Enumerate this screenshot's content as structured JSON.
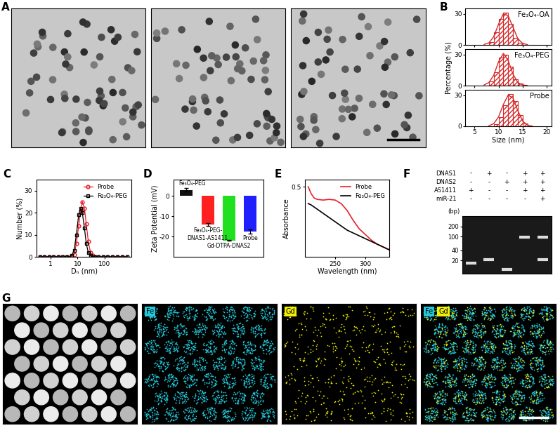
{
  "panel_A": {
    "label": "A",
    "images": 3
  },
  "chart_data": [
    {
      "type": "histogram",
      "label": "B",
      "annotation": "Fe₃O₄-OA",
      "bins": [
        8,
        9,
        10,
        11,
        12,
        13,
        14,
        15
      ],
      "values": [
        3,
        12,
        25,
        31,
        20,
        7,
        2
      ],
      "fit": {
        "x": [
          7,
          8,
          9,
          10,
          11,
          12,
          13,
          14,
          15,
          16
        ],
        "values": [
          0.5,
          2,
          8,
          20,
          30,
          28,
          17,
          6,
          1.5,
          0.3
        ]
      },
      "color": "#d62728",
      "xlim": [
        3,
        21
      ],
      "xticks": [
        5,
        10,
        15,
        20
      ],
      "ylim": [
        0,
        35
      ],
      "yticks": [
        0,
        30
      ],
      "tick_labels": "y"
    },
    {
      "type": "histogram",
      "annotation": "Fe₃O₄-PEG",
      "ylabel": "Percentage (%)",
      "bins": [
        8,
        9,
        10,
        11,
        12,
        13,
        14,
        15
      ],
      "values": [
        4,
        13,
        27,
        30,
        18,
        6,
        2
      ],
      "fit": {
        "x": [
          7,
          8,
          9,
          10,
          11,
          12,
          13,
          14,
          15,
          16
        ],
        "values": [
          0.6,
          3,
          10,
          23,
          31,
          24,
          11,
          3,
          0.6,
          0.1
        ]
      },
      "color": "#d62728",
      "xlim": [
        3,
        21
      ],
      "xticks": [
        5,
        10,
        15,
        20
      ],
      "ylim": [
        0,
        35
      ],
      "yticks": [
        0,
        30
      ],
      "tick_labels": "y"
    },
    {
      "type": "histogram",
      "annotation": "Probe",
      "xlabel": "Size (nm)",
      "bins": [
        9,
        10,
        11,
        12,
        13,
        14,
        15,
        16
      ],
      "values": [
        2,
        9,
        20,
        31,
        24,
        11,
        3
      ],
      "fit": {
        "x": [
          8,
          9,
          10,
          11,
          12,
          13,
          14,
          15,
          16,
          17
        ],
        "values": [
          0.5,
          2.5,
          9,
          21,
          30,
          27,
          15,
          5,
          1,
          0.2
        ]
      },
      "color": "#d62728",
      "xlim": [
        3,
        21
      ],
      "xticks": [
        5,
        10,
        15,
        20
      ],
      "ylim": [
        0,
        35
      ],
      "yticks": [
        0,
        30
      ]
    },
    {
      "type": "line",
      "label": "C",
      "xlabel": "Dₕ (nm)",
      "ylabel": "Number (%)",
      "log": "x",
      "x": [
        0.4,
        0.6,
        0.9,
        1.3,
        1.9,
        2.8,
        4.1,
        6.0,
        7.5,
        9,
        11,
        13,
        15,
        18,
        21,
        25,
        30,
        36,
        45,
        60,
        90,
        130,
        200,
        300,
        450,
        700
      ],
      "series": [
        {
          "name": "Probe",
          "color": "#e8202a",
          "marker": "o",
          "values": [
            0,
            0,
            0,
            0,
            0,
            0,
            0,
            0,
            1,
            6,
            14,
            21,
            25,
            22,
            15,
            7,
            2,
            0.5,
            0,
            0,
            0,
            0,
            0,
            0,
            0,
            0
          ]
        },
        {
          "name": "Fe₃O₄-PEG",
          "color": "#000000",
          "marker": "s",
          "values": [
            0,
            0,
            0,
            0,
            0,
            0,
            0,
            0.5,
            3,
            10,
            19,
            22,
            20,
            13,
            6,
            2,
            0.5,
            0,
            0,
            0,
            0,
            0,
            0,
            0,
            0,
            0
          ]
        }
      ],
      "xlim": [
        0.3,
        1000
      ],
      "xticks": [
        1,
        10,
        100
      ],
      "ylim": [
        0,
        35
      ],
      "yticks": [
        0,
        10,
        20,
        30
      ],
      "legend": "upper right"
    },
    {
      "type": "bar",
      "label": "D",
      "ylabel": "Zeta Potential (mV)",
      "categories": [
        "Fe₃O₄-PEG",
        "Fe₃O₄-PEG-\nDNAS1-AS1411",
        "Gd-DTPA-DNAS2",
        "Probe"
      ],
      "values": [
        3,
        -14,
        -22,
        -17.5
      ],
      "errors": [
        0.8,
        0.7,
        0.2,
        1.1
      ],
      "colors": [
        "#111111",
        "#ff2020",
        "#20e020",
        "#2020ff"
      ],
      "ylim": [
        -30,
        8
      ],
      "yticks": [
        -20,
        -10,
        0
      ],
      "tick_labels": "y"
    },
    {
      "type": "line",
      "label": "E",
      "xlabel": "Wavelength (nm)",
      "ylabel": "Absorbance",
      "x": [
        205,
        210,
        215,
        220,
        230,
        240,
        250,
        260,
        270,
        280,
        290,
        300,
        310,
        320,
        330,
        340
      ],
      "series": [
        {
          "name": "Probe",
          "color": "#e8202a",
          "values": [
            0.5,
            0.45,
            0.42,
            0.41,
            0.405,
            0.41,
            0.405,
            0.38,
            0.33,
            0.26,
            0.2,
            0.16,
            0.12,
            0.09,
            0.07,
            0.05
          ]
        },
        {
          "name": "Fe₃O₄-PEG",
          "color": "#000000",
          "values": [
            0.38,
            0.37,
            0.355,
            0.34,
            0.31,
            0.28,
            0.25,
            0.22,
            0.19,
            0.17,
            0.15,
            0.13,
            0.11,
            0.09,
            0.07,
            0.05
          ]
        }
      ],
      "xlim": [
        200,
        340
      ],
      "xticks": [
        250,
        300
      ],
      "ylim": [
        0,
        0.55
      ],
      "yticks": [
        0.5
      ],
      "legend": "upper right"
    },
    {
      "type": "gel",
      "label": "F",
      "ylabel": "(bp)",
      "log": "y",
      "rows": [
        {
          "name": "DNAS1",
          "signs": [
            "-",
            "+",
            "-",
            "+",
            "+"
          ]
        },
        {
          "name": "DNAS2",
          "signs": [
            "-",
            "-",
            "+",
            "+",
            "+"
          ]
        },
        {
          "name": "AS1411",
          "signs": [
            "+",
            "-",
            "-",
            "+",
            "+"
          ]
        },
        {
          "name": "miR-21",
          "signs": [
            "-",
            "-",
            "-",
            "-",
            "+"
          ]
        }
      ],
      "bands": [
        {
          "lane": 0,
          "bp": 17
        },
        {
          "lane": 1,
          "bp": 21
        },
        {
          "lane": 2,
          "bp": 11
        },
        {
          "lane": 3,
          "bp": 95
        },
        {
          "lane": 4,
          "bp": 95
        },
        {
          "lane": 4,
          "bp": 21
        }
      ],
      "ylim": [
        8,
        400
      ],
      "yticks": [
        20,
        40,
        100,
        200
      ]
    }
  ],
  "panel_G": {
    "label": "G",
    "maps": [
      [],
      [
        "Fe"
      ],
      [
        "Gd"
      ],
      [
        "Fe",
        "Gd"
      ]
    ],
    "element_colors": {
      "Fe": "#22c8d8",
      "Gd": "#f0f000"
    }
  }
}
